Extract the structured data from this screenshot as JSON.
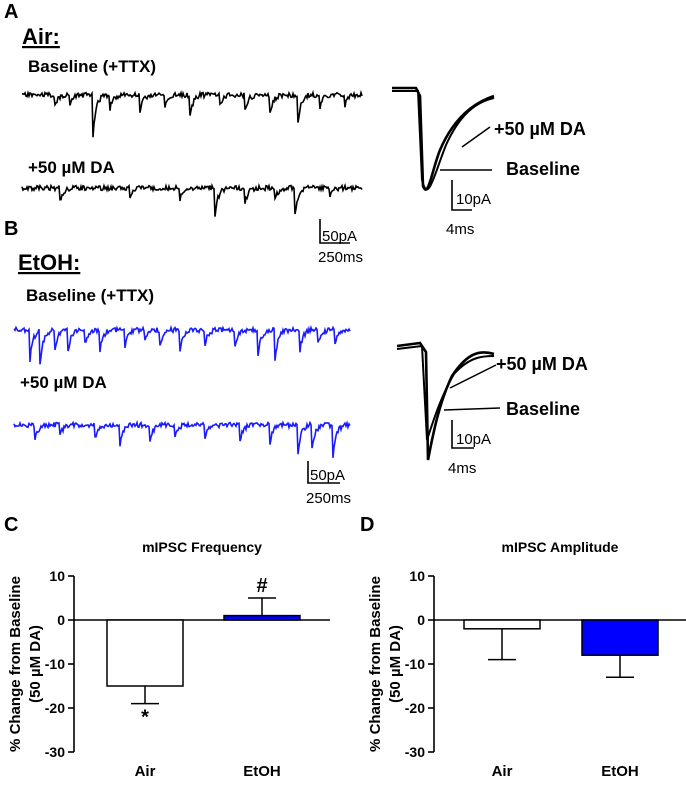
{
  "panels": {
    "a": {
      "letter": "A",
      "group": "Air:",
      "baseline_label": "Baseline (+TTX)",
      "da_label": "+50 µM DA",
      "trace_color": "#000000",
      "avg_da_label": "+50 µM DA",
      "avg_baseline_label": "Baseline",
      "trace_scale": {
        "amp": "50pA",
        "time": "250ms"
      },
      "avg_scale": {
        "amp": "10pA",
        "time": "4ms"
      }
    },
    "b": {
      "letter": "B",
      "group": "EtOH:",
      "baseline_label": "Baseline (+TTX)",
      "da_label": "+50 µM DA",
      "trace_color": "#1a1aff",
      "avg_da_label": "+50 µM DA",
      "avg_baseline_label": "Baseline",
      "trace_scale": {
        "amp": "50pA",
        "time": "250ms"
      },
      "avg_scale": {
        "amp": "10pA",
        "time": "4ms"
      }
    },
    "c": {
      "letter": "C"
    },
    "d": {
      "letter": "D"
    }
  },
  "chart_data": [
    {
      "type": "bar",
      "title": "mIPSC Frequency",
      "ylabel": "% Change from Baseline",
      "ylabel2": "(50 µM DA)",
      "categories": [
        "Air",
        "EtOH"
      ],
      "values": [
        -15,
        1
      ],
      "errors": [
        4,
        4
      ],
      "error_direction": [
        "down",
        "up"
      ],
      "bar_colors": [
        "#ffffff",
        "#0000ff"
      ],
      "annotations": [
        "*",
        "#"
      ],
      "ylim": [
        -30,
        10
      ],
      "yticks": [
        "10",
        "0",
        "-10",
        "-20",
        "-30"
      ]
    },
    {
      "type": "bar",
      "title": "mIPSC Amplitude",
      "ylabel": "% Change from Baseline",
      "ylabel2": "(50 µM DA)",
      "categories": [
        "Air",
        "EtOH"
      ],
      "values": [
        -2,
        -8
      ],
      "errors": [
        7,
        5
      ],
      "error_direction": [
        "down",
        "down"
      ],
      "bar_colors": [
        "#ffffff",
        "#0000ff"
      ],
      "annotations": [
        "",
        ""
      ],
      "ylim": [
        -30,
        10
      ],
      "yticks": [
        "10",
        "0",
        "-10",
        "-20",
        "-30"
      ]
    }
  ]
}
